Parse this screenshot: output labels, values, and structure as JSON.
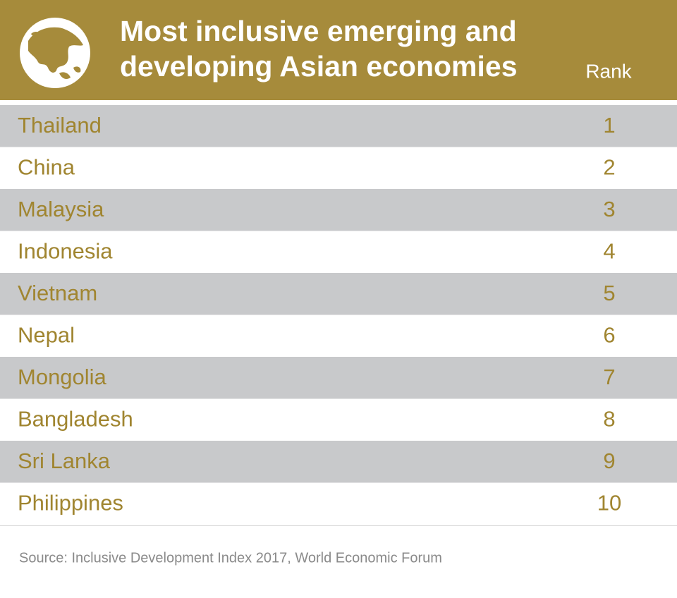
{
  "header": {
    "title_lines": [
      "Most inclusive emerging and",
      "developing Asian economies"
    ],
    "rank_label": "Rank"
  },
  "table": {
    "rows": [
      [
        "Thailand",
        1
      ],
      [
        "China",
        2
      ],
      [
        "Malaysia",
        3
      ],
      [
        "Indonesia",
        4
      ],
      [
        "Vietnam",
        5
      ],
      [
        "Nepal",
        6
      ],
      [
        "Mongolia",
        7
      ],
      [
        "Bangladesh",
        8
      ],
      [
        "Sri Lanka",
        9
      ],
      [
        "Philippines",
        10
      ]
    ]
  },
  "source": "Source: Inclusive Development Index 2017, World Economic Forum"
}
